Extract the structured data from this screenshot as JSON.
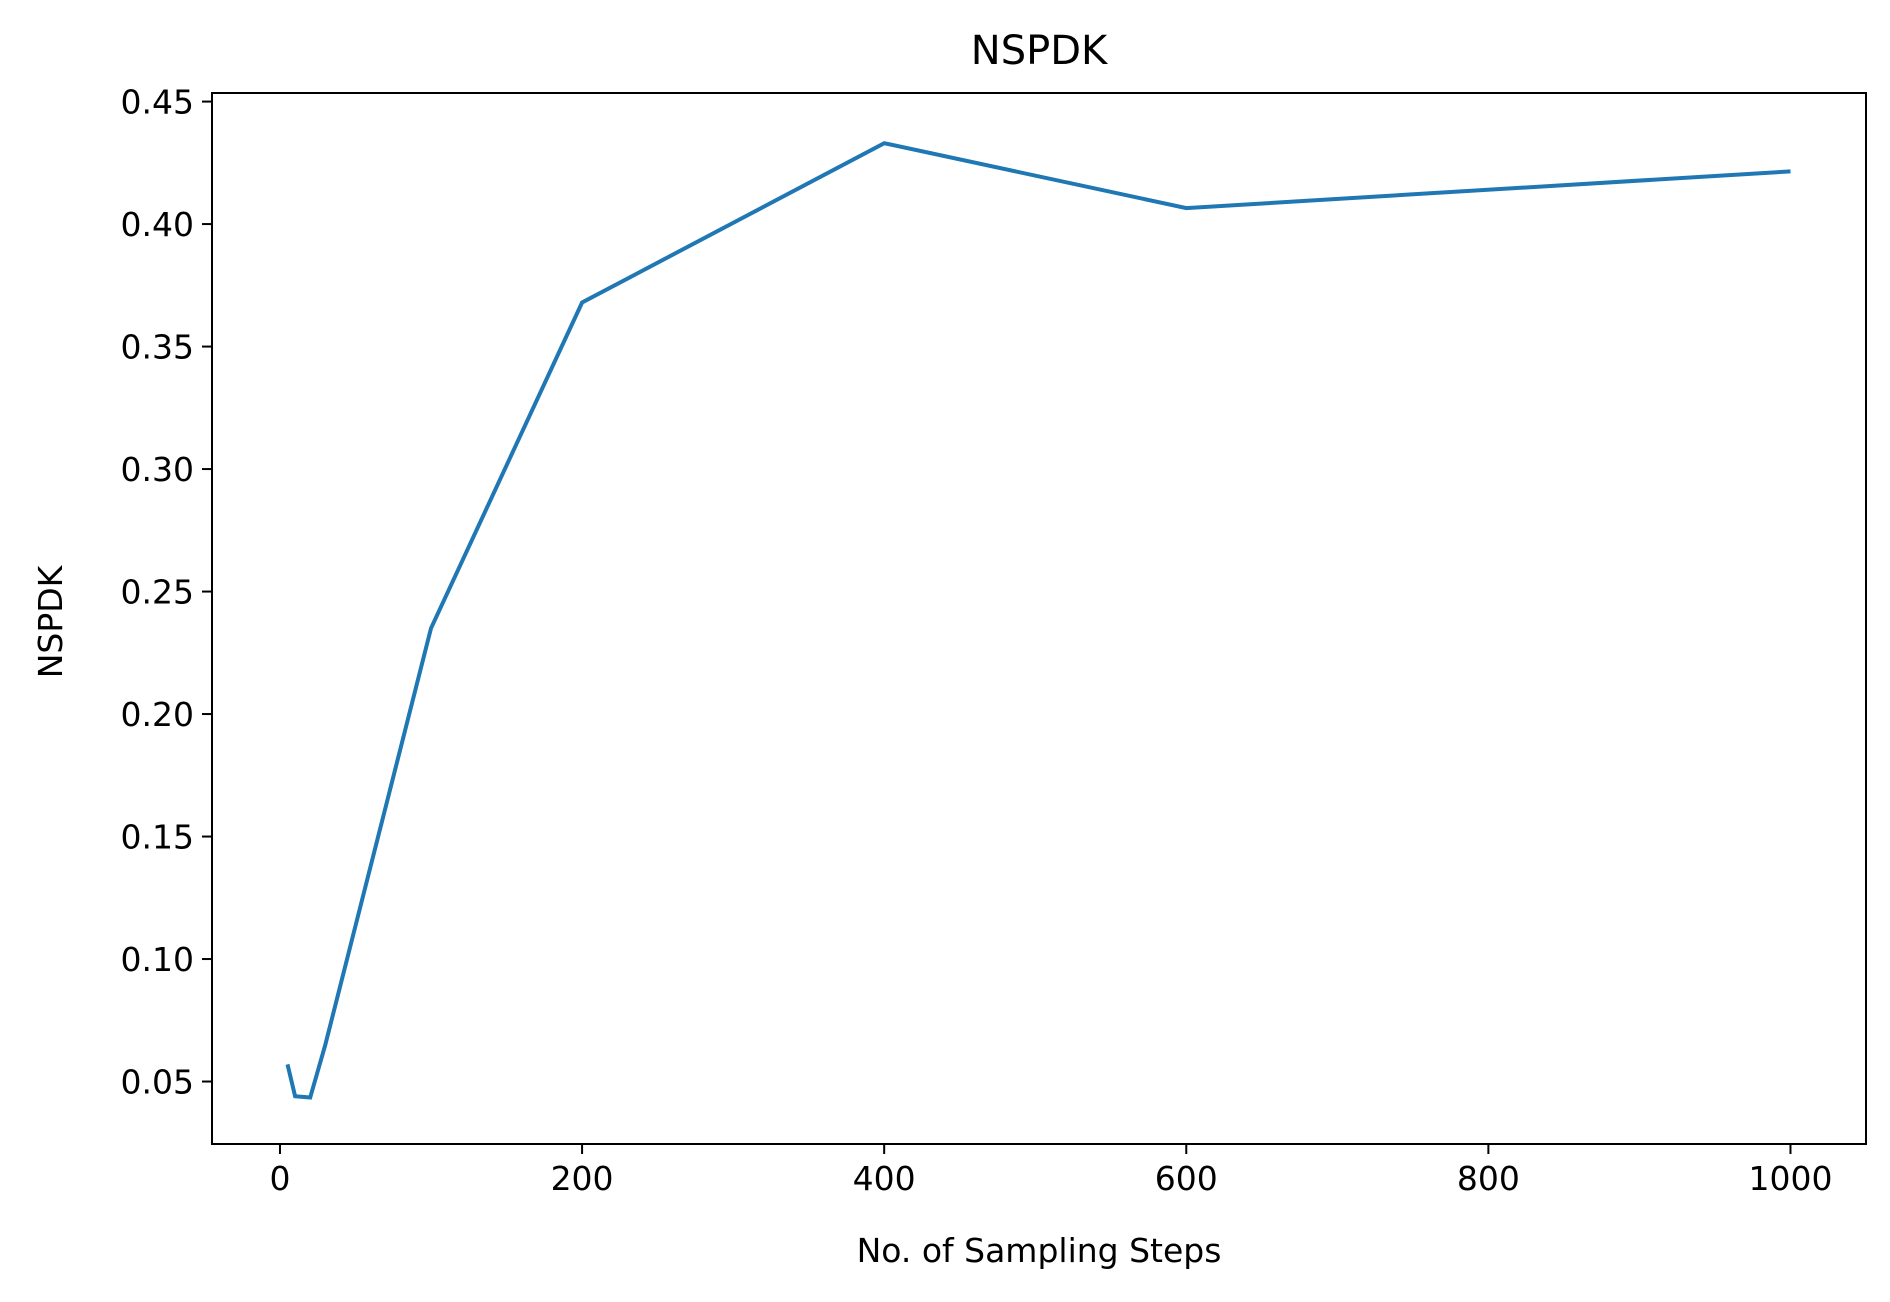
{
  "chart_data": {
    "type": "line",
    "title": "NSPDK",
    "xlabel": "No. of Sampling Steps",
    "ylabel": "NSPDK",
    "xlim": [
      -45,
      1050
    ],
    "ylim": [
      0.0245,
      0.4535
    ],
    "xticks": [
      0,
      200,
      400,
      600,
      800,
      1000
    ],
    "xtick_labels": [
      "0",
      "200",
      "400",
      "600",
      "800",
      "1000"
    ],
    "yticks": [
      0.05,
      0.1,
      0.15,
      0.2,
      0.25,
      0.3,
      0.35,
      0.4,
      0.45
    ],
    "ytick_labels": [
      "0.05",
      "0.10",
      "0.15",
      "0.20",
      "0.25",
      "0.30",
      "0.35",
      "0.40",
      "0.45"
    ],
    "grid": false,
    "series": [
      {
        "color": "#1f77b4",
        "x": [
          5,
          10,
          20,
          30,
          100,
          200,
          400,
          600,
          1000
        ],
        "y": [
          0.057,
          0.044,
          0.0435,
          0.065,
          0.235,
          0.368,
          0.433,
          0.4065,
          0.4215
        ]
      }
    ]
  }
}
